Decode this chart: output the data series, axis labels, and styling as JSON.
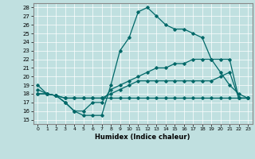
{
  "xlabel": "Humidex (Indice chaleur)",
  "xlim": [
    -0.5,
    23.5
  ],
  "ylim": [
    14.5,
    28.5
  ],
  "xticks": [
    0,
    1,
    2,
    3,
    4,
    5,
    6,
    7,
    8,
    9,
    10,
    11,
    12,
    13,
    14,
    15,
    16,
    17,
    18,
    19,
    20,
    21,
    22,
    23
  ],
  "yticks": [
    15,
    16,
    17,
    18,
    19,
    20,
    21,
    22,
    23,
    24,
    25,
    26,
    27,
    28
  ],
  "bg_color": "#c0e0e0",
  "line_color": "#006868",
  "lines": [
    {
      "x": [
        0,
        1,
        2,
        3,
        4,
        5,
        6,
        7,
        8,
        9,
        10,
        11,
        12,
        13,
        14,
        15,
        16,
        17,
        18,
        19,
        20,
        21,
        22,
        23
      ],
      "y": [
        19,
        18,
        17.8,
        17,
        16,
        15.5,
        15.5,
        15.5,
        19,
        23,
        24.5,
        27.5,
        28,
        27,
        26,
        25.5,
        25.5,
        25,
        24.5,
        22,
        20.5,
        19,
        18,
        17.5
      ]
    },
    {
      "x": [
        0,
        1,
        2,
        3,
        4,
        5,
        6,
        7,
        8,
        9,
        10,
        11,
        12,
        13,
        14,
        15,
        16,
        17,
        18,
        19,
        20,
        21,
        22,
        23
      ],
      "y": [
        18,
        18,
        17.8,
        17,
        16,
        16,
        17,
        17,
        18.5,
        19,
        19.5,
        20,
        20.5,
        21,
        21,
        21.5,
        21.5,
        22,
        22,
        22,
        22,
        22,
        17.5,
        17.5
      ]
    },
    {
      "x": [
        0,
        1,
        2,
        3,
        4,
        5,
        6,
        7,
        8,
        9,
        10,
        11,
        12,
        13,
        14,
        15,
        16,
        17,
        18,
        19,
        20,
        21,
        22,
        23
      ],
      "y": [
        18,
        18,
        17.8,
        17.5,
        17.5,
        17.5,
        17.5,
        17.5,
        18,
        18.5,
        19,
        19.5,
        19.5,
        19.5,
        19.5,
        19.5,
        19.5,
        19.5,
        19.5,
        19.5,
        20,
        20.5,
        17.5,
        17.5
      ]
    },
    {
      "x": [
        0,
        1,
        2,
        3,
        4,
        5,
        6,
        7,
        8,
        9,
        10,
        11,
        12,
        13,
        14,
        15,
        16,
        17,
        18,
        19,
        20,
        21,
        22,
        23
      ],
      "y": [
        18.5,
        18,
        17.8,
        17.5,
        17.5,
        17.5,
        17.5,
        17.5,
        17.5,
        17.5,
        17.5,
        17.5,
        17.5,
        17.5,
        17.5,
        17.5,
        17.5,
        17.5,
        17.5,
        17.5,
        17.5,
        17.5,
        17.5,
        17.5
      ]
    }
  ]
}
